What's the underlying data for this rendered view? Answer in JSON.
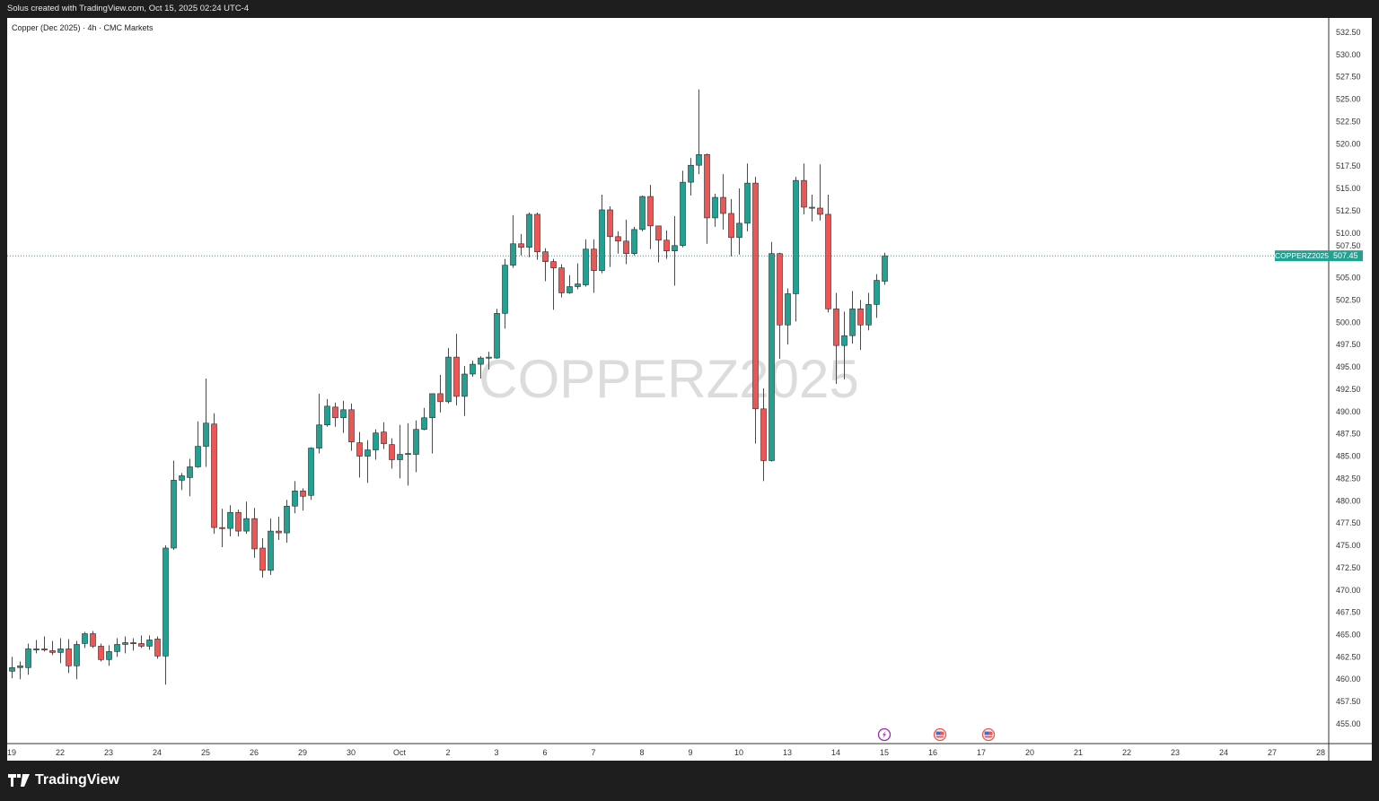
{
  "header": {
    "credit": "Solus created with TradingView.com, Oct 15, 2025 02:24 UTC-4"
  },
  "legend": {
    "symbol_description": "Copper (Dec 2025) · 4h · CMC Markets"
  },
  "watermark": "COPPERZ2025",
  "footer": {
    "brand": "TradingView"
  },
  "colors": {
    "up": "#22a092",
    "down": "#ee5555",
    "wick": "#4a4a4a",
    "price_line": "#22a092"
  },
  "chart_data": {
    "type": "candlestick",
    "symbol": "COPPERZ2025",
    "interval": "4h",
    "last_price": "507.45",
    "ylim": [
      452.5,
      535
    ],
    "y_ticks": [
      "532.50",
      "530.00",
      "527.50",
      "525.00",
      "522.50",
      "520.00",
      "517.50",
      "515.00",
      "512.50",
      "510.00",
      "507.50",
      "505.00",
      "502.50",
      "500.00",
      "497.50",
      "495.00",
      "492.50",
      "490.00",
      "487.50",
      "485.00",
      "482.50",
      "480.00",
      "477.50",
      "475.00",
      "472.50",
      "470.00",
      "467.50",
      "465.00",
      "462.50",
      "460.00",
      "457.50",
      "455.00"
    ],
    "x_ticks": [
      "19",
      "22",
      "23",
      "24",
      "25",
      "26",
      "29",
      "30",
      "Oct",
      "2",
      "3",
      "6",
      "7",
      "8",
      "9",
      "10",
      "13",
      "14",
      "15",
      "16",
      "17",
      "20",
      "21",
      "22",
      "23",
      "24",
      "27",
      "28"
    ],
    "events": [
      {
        "date": "15",
        "type": "lightning-icon"
      },
      {
        "date": "16",
        "type": "us-flag-icon"
      },
      {
        "date": "17",
        "type": "us-flag-icon"
      }
    ],
    "ohlc_columns": [
      "open",
      "high",
      "low",
      "close"
    ],
    "candles": [
      [
        460.9,
        462.5,
        460.1,
        461.3
      ],
      [
        461.3,
        462.0,
        460.0,
        461.5
      ],
      [
        461.3,
        464.0,
        460.5,
        463.4
      ],
      [
        463.3,
        464.4,
        462.9,
        463.4
      ],
      [
        463.4,
        464.8,
        463.1,
        463.3
      ],
      [
        463.2,
        464.3,
        462.7,
        463.0
      ],
      [
        463.0,
        464.6,
        461.8,
        463.4
      ],
      [
        463.4,
        464.5,
        460.7,
        461.5
      ],
      [
        461.5,
        464.3,
        460.0,
        463.9
      ],
      [
        464.0,
        465.3,
        463.5,
        465.1
      ],
      [
        465.1,
        465.4,
        463.5,
        463.7
      ],
      [
        463.7,
        464.0,
        462.0,
        462.2
      ],
      [
        462.2,
        463.8,
        461.5,
        463.1
      ],
      [
        463.1,
        464.6,
        462.5,
        463.9
      ],
      [
        463.9,
        464.8,
        462.9,
        464.1
      ],
      [
        464.1,
        464.6,
        463.2,
        464.0
      ],
      [
        464.0,
        464.9,
        463.5,
        463.7
      ],
      [
        463.7,
        464.9,
        463.3,
        464.4
      ],
      [
        464.5,
        464.8,
        462.3,
        462.6
      ],
      [
        462.6,
        475.0,
        459.4,
        474.7
      ],
      [
        474.7,
        484.5,
        474.5,
        482.3
      ],
      [
        482.3,
        483.1,
        481.2,
        482.8
      ],
      [
        482.6,
        484.7,
        480.5,
        483.8
      ],
      [
        483.8,
        488.9,
        483.7,
        486.1
      ],
      [
        486.1,
        493.7,
        483.8,
        488.7
      ],
      [
        488.6,
        489.8,
        476.3,
        477.0
      ],
      [
        477.0,
        479.1,
        474.8,
        476.9
      ],
      [
        476.9,
        479.5,
        476.0,
        478.7
      ],
      [
        478.7,
        479.0,
        476.0,
        476.6
      ],
      [
        476.6,
        479.9,
        476.3,
        478.0
      ],
      [
        478.0,
        479.2,
        473.6,
        474.6
      ],
      [
        474.7,
        475.8,
        471.4,
        472.2
      ],
      [
        472.2,
        478.0,
        471.7,
        476.6
      ],
      [
        476.6,
        478.2,
        475.6,
        476.4
      ],
      [
        476.4,
        480.1,
        475.3,
        479.4
      ],
      [
        479.4,
        482.2,
        478.6,
        481.1
      ],
      [
        481.1,
        481.4,
        478.9,
        480.5
      ],
      [
        480.6,
        486.0,
        480.1,
        485.9
      ],
      [
        485.9,
        492.0,
        485.3,
        488.5
      ],
      [
        488.5,
        491.4,
        488.3,
        490.6
      ],
      [
        490.5,
        491.0,
        488.3,
        489.3
      ],
      [
        489.3,
        491.2,
        487.6,
        490.2
      ],
      [
        490.2,
        490.9,
        485.6,
        486.6
      ],
      [
        486.5,
        487.7,
        482.6,
        485.0
      ],
      [
        485.0,
        486.8,
        482.0,
        485.7
      ],
      [
        485.7,
        488.0,
        484.6,
        487.6
      ],
      [
        487.7,
        488.8,
        485.8,
        486.4
      ],
      [
        486.3,
        487.0,
        483.6,
        484.6
      ],
      [
        484.6,
        488.5,
        482.5,
        485.2
      ],
      [
        485.2,
        488.7,
        481.7,
        485.3
      ],
      [
        485.2,
        489.0,
        483.2,
        488.0
      ],
      [
        488.0,
        490.4,
        487.9,
        489.3
      ],
      [
        489.3,
        492.0,
        485.3,
        492.0
      ],
      [
        492.0,
        494.1,
        489.9,
        491.1
      ],
      [
        491.1,
        497.1,
        490.9,
        496.1
      ],
      [
        496.1,
        498.7,
        490.7,
        491.7
      ],
      [
        491.7,
        495.1,
        489.5,
        494.2
      ],
      [
        494.2,
        495.7,
        493.9,
        495.3
      ],
      [
        495.3,
        496.2,
        493.7,
        496.0
      ],
      [
        496.0,
        496.7,
        494.7,
        496.1
      ],
      [
        496.0,
        501.5,
        495.9,
        501.0
      ],
      [
        501.0,
        507.1,
        499.3,
        506.4
      ],
      [
        506.4,
        512.0,
        506.1,
        508.8
      ],
      [
        508.8,
        509.9,
        507.5,
        508.4
      ],
      [
        508.4,
        512.3,
        507.3,
        512.1
      ],
      [
        512.1,
        512.3,
        507.0,
        507.9
      ],
      [
        507.9,
        508.3,
        504.6,
        506.8
      ],
      [
        506.8,
        507.1,
        501.4,
        506.1
      ],
      [
        506.1,
        506.5,
        502.8,
        503.3
      ],
      [
        503.3,
        505.3,
        503.2,
        504.0
      ],
      [
        504.0,
        506.6,
        503.7,
        504.3
      ],
      [
        504.2,
        509.3,
        504.0,
        508.2
      ],
      [
        508.2,
        509.3,
        503.3,
        505.8
      ],
      [
        505.8,
        514.3,
        505.5,
        512.6
      ],
      [
        512.6,
        513.0,
        506.2,
        509.6
      ],
      [
        509.6,
        510.2,
        507.7,
        509.1
      ],
      [
        509.1,
        511.5,
        506.5,
        507.7
      ],
      [
        507.7,
        510.7,
        507.5,
        510.4
      ],
      [
        510.4,
        514.2,
        510.2,
        514.1
      ],
      [
        514.1,
        515.4,
        508.2,
        510.8
      ],
      [
        510.8,
        510.8,
        506.7,
        509.2
      ],
      [
        509.2,
        510.3,
        507.1,
        508.0
      ],
      [
        508.0,
        511.9,
        504.1,
        508.6
      ],
      [
        508.6,
        517.0,
        508.4,
        515.7
      ],
      [
        515.7,
        518.4,
        514.2,
        517.6
      ],
      [
        517.6,
        526.1,
        516.6,
        518.8
      ],
      [
        518.8,
        518.9,
        508.8,
        511.7
      ],
      [
        511.7,
        514.4,
        510.7,
        514.0
      ],
      [
        514.0,
        516.6,
        510.4,
        512.2
      ],
      [
        512.2,
        513.8,
        507.4,
        509.5
      ],
      [
        509.5,
        515.0,
        507.6,
        511.1
      ],
      [
        511.1,
        517.8,
        510.2,
        515.6
      ],
      [
        515.6,
        516.3,
        486.4,
        490.3
      ],
      [
        490.3,
        492.6,
        482.2,
        484.5
      ],
      [
        484.5,
        509.0,
        484.4,
        507.7
      ],
      [
        507.7,
        507.8,
        495.9,
        499.7
      ],
      [
        499.7,
        503.8,
        497.5,
        503.2
      ],
      [
        503.2,
        516.3,
        500.1,
        515.9
      ],
      [
        515.9,
        517.8,
        512.1,
        512.9
      ],
      [
        512.9,
        514.3,
        511.3,
        512.9
      ],
      [
        512.8,
        517.7,
        511.4,
        512.1
      ],
      [
        512.1,
        514.3,
        501.1,
        501.5
      ],
      [
        501.5,
        503.3,
        493.1,
        497.4
      ],
      [
        497.4,
        501.2,
        493.6,
        498.5
      ],
      [
        498.5,
        503.5,
        497.6,
        501.5
      ],
      [
        501.5,
        502.5,
        496.9,
        499.7
      ],
      [
        499.7,
        503.3,
        499.1,
        502.0
      ],
      [
        502.0,
        505.4,
        500.5,
        504.7
      ],
      [
        504.6,
        507.8,
        504.2,
        507.45
      ]
    ]
  }
}
